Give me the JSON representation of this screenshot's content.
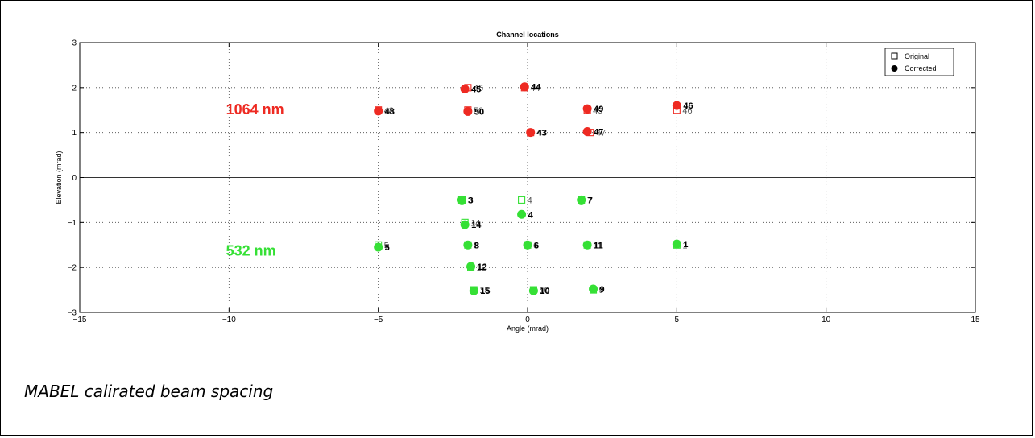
{
  "caption": "MABEL calirated beam spacing",
  "chart_data": {
    "type": "scatter",
    "title": "Channel locations",
    "xlabel": "Angle (mrad)",
    "ylabel": "Elevation (mrad)",
    "xlim": [
      -15,
      15
    ],
    "ylim": [
      -3,
      3
    ],
    "xticks": [
      "-15",
      "-10",
      "-5",
      "0",
      "5",
      "10",
      "15"
    ],
    "yticks": [
      "-3",
      "-2",
      "-1",
      "0",
      "1",
      "2",
      "3"
    ],
    "grid": true,
    "zero_line": true,
    "legend": {
      "placement": "top-right",
      "entries": [
        {
          "name": "Original",
          "marker": "open-square"
        },
        {
          "name": "Corrected",
          "marker": "filled-circle"
        }
      ]
    },
    "colors": {
      "ir": "#ee2a22",
      "green": "#35e035"
    },
    "annotations": [
      {
        "text": "1064 nm",
        "x": -10.1,
        "y": 1.5,
        "color": "#ee2a22"
      },
      {
        "text": "532 nm",
        "x": -10.1,
        "y": -1.65,
        "color": "#35e035"
      }
    ],
    "series": [
      {
        "name": "Original",
        "points": [
          {
            "channel": "1",
            "x": 5.0,
            "y": -1.5,
            "color": "#35e035"
          },
          {
            "channel": "3",
            "x": -2.2,
            "y": -0.5,
            "color": "#35e035"
          },
          {
            "channel": "4",
            "x": -0.2,
            "y": -0.5,
            "color": "#35e035"
          },
          {
            "channel": "5",
            "x": -5.0,
            "y": -1.5,
            "color": "#35e035"
          },
          {
            "channel": "6",
            "x": 0.0,
            "y": -1.5,
            "color": "#35e035"
          },
          {
            "channel": "7",
            "x": 1.8,
            "y": -0.5,
            "color": "#35e035"
          },
          {
            "channel": "8",
            "x": -2.0,
            "y": -1.5,
            "color": "#35e035"
          },
          {
            "channel": "9",
            "x": 2.2,
            "y": -2.5,
            "color": "#35e035"
          },
          {
            "channel": "10",
            "x": 0.2,
            "y": -2.5,
            "color": "#35e035"
          },
          {
            "channel": "11",
            "x": 2.0,
            "y": -1.5,
            "color": "#35e035"
          },
          {
            "channel": "12",
            "x": -1.9,
            "y": -2.0,
            "color": "#35e035"
          },
          {
            "channel": "14",
            "x": -2.1,
            "y": -1.0,
            "color": "#35e035"
          },
          {
            "channel": "15",
            "x": -1.8,
            "y": -2.5,
            "color": "#35e035"
          },
          {
            "channel": "43",
            "x": 0.1,
            "y": 1.0,
            "color": "#ee2a22"
          },
          {
            "channel": "44",
            "x": -0.1,
            "y": 2.0,
            "color": "#ee2a22"
          },
          {
            "channel": "45",
            "x": -2.0,
            "y": 2.0,
            "color": "#ee2a22"
          },
          {
            "channel": "46",
            "x": 5.0,
            "y": 1.5,
            "color": "#ee2a22"
          },
          {
            "channel": "47",
            "x": 2.1,
            "y": 1.0,
            "color": "#ee2a22"
          },
          {
            "channel": "48",
            "x": -5.0,
            "y": 1.5,
            "color": "#ee2a22"
          },
          {
            "channel": "49",
            "x": 2.0,
            "y": 1.5,
            "color": "#ee2a22"
          },
          {
            "channel": "50",
            "x": -2.0,
            "y": 1.5,
            "color": "#ee2a22"
          }
        ]
      },
      {
        "name": "Corrected",
        "points": [
          {
            "channel": "1",
            "x": 5.0,
            "y": -1.48,
            "color": "#35e035"
          },
          {
            "channel": "3",
            "x": -2.2,
            "y": -0.5,
            "color": "#35e035"
          },
          {
            "channel": "4",
            "x": -0.2,
            "y": -0.82,
            "color": "#35e035"
          },
          {
            "channel": "5",
            "x": -5.0,
            "y": -1.55,
            "color": "#35e035"
          },
          {
            "channel": "6",
            "x": 0.0,
            "y": -1.5,
            "color": "#35e035"
          },
          {
            "channel": "7",
            "x": 1.8,
            "y": -0.5,
            "color": "#35e035"
          },
          {
            "channel": "8",
            "x": -2.0,
            "y": -1.5,
            "color": "#35e035"
          },
          {
            "channel": "9",
            "x": 2.2,
            "y": -2.48,
            "color": "#35e035"
          },
          {
            "channel": "10",
            "x": 0.2,
            "y": -2.52,
            "color": "#35e035"
          },
          {
            "channel": "11",
            "x": 2.0,
            "y": -1.5,
            "color": "#35e035"
          },
          {
            "channel": "12",
            "x": -1.9,
            "y": -1.98,
            "color": "#35e035"
          },
          {
            "channel": "14",
            "x": -2.1,
            "y": -1.05,
            "color": "#35e035"
          },
          {
            "channel": "15",
            "x": -1.8,
            "y": -2.52,
            "color": "#35e035"
          },
          {
            "channel": "43",
            "x": 0.1,
            "y": 1.0,
            "color": "#ee2a22"
          },
          {
            "channel": "44",
            "x": -0.1,
            "y": 2.02,
            "color": "#ee2a22"
          },
          {
            "channel": "45",
            "x": -2.1,
            "y": 1.97,
            "color": "#ee2a22"
          },
          {
            "channel": "46",
            "x": 5.0,
            "y": 1.6,
            "color": "#ee2a22"
          },
          {
            "channel": "47",
            "x": 2.0,
            "y": 1.02,
            "color": "#ee2a22"
          },
          {
            "channel": "48",
            "x": -5.0,
            "y": 1.48,
            "color": "#ee2a22"
          },
          {
            "channel": "49",
            "x": 2.0,
            "y": 1.53,
            "color": "#ee2a22"
          },
          {
            "channel": "50",
            "x": -2.0,
            "y": 1.47,
            "color": "#ee2a22"
          }
        ]
      }
    ]
  }
}
